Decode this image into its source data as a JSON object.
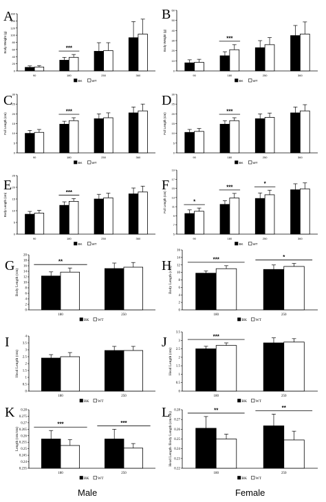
{
  "figure": {
    "column_labels": [
      "Male",
      "Female"
    ]
  },
  "chart_data": [
    {
      "type": "bar",
      "panel": "A",
      "categories": [
        "90",
        "180",
        "250",
        "360"
      ],
      "ylabel": "Body Weight (g)",
      "ylim": [
        0,
        160
      ],
      "yticks": [
        "0",
        "20",
        "40",
        "60",
        "80",
        "100",
        "120",
        "140",
        "160"
      ],
      "series": [
        {
          "name": "BK",
          "values": [
            10,
            30,
            55,
            93
          ],
          "errors": [
            4,
            8,
            24,
            45
          ]
        },
        {
          "name": "WT",
          "values": [
            11,
            38,
            57,
            103
          ],
          "errors": [
            4,
            8,
            22,
            42
          ]
        }
      ],
      "legend": "bottom",
      "significance": [
        {
          "category": "180",
          "label": "***"
        }
      ]
    },
    {
      "type": "bar",
      "panel": "B",
      "categories": [
        "90",
        "180",
        "250",
        "360"
      ],
      "ylabel": "Body Weight (g)",
      "ylim": [
        0,
        60
      ],
      "yticks": [
        "0",
        "10",
        "20",
        "30",
        "40",
        "50",
        "60"
      ],
      "series": [
        {
          "name": "BK",
          "values": [
            8,
            15,
            23,
            35
          ],
          "errors": [
            3,
            4,
            7,
            10
          ]
        },
        {
          "name": "WT",
          "values": [
            8.5,
            21,
            26,
            36.5
          ],
          "errors": [
            3,
            5,
            7,
            12
          ]
        }
      ],
      "legend": "bottom",
      "significance": [
        {
          "category": "180",
          "label": "***"
        }
      ]
    },
    {
      "type": "bar",
      "panel": "C",
      "categories": [
        "90",
        "180",
        "250",
        "360"
      ],
      "ylabel": "Full Length (cm)",
      "ylim": [
        0,
        30
      ],
      "yticks": [
        "0",
        "5",
        "10",
        "15",
        "20",
        "25",
        "30"
      ],
      "series": [
        {
          "name": "BK",
          "values": [
            10,
            14.7,
            17.5,
            20.5
          ],
          "errors": [
            1.5,
            1.5,
            2.5,
            3
          ]
        },
        {
          "name": "WT",
          "values": [
            10.5,
            16.5,
            18,
            21.5
          ],
          "errors": [
            1.5,
            1.5,
            2.5,
            3.5
          ]
        }
      ],
      "legend": "bottom",
      "significance": [
        {
          "category": "180",
          "label": "***"
        }
      ]
    },
    {
      "type": "bar",
      "panel": "D",
      "categories": [
        "90",
        "180",
        "250",
        "360"
      ],
      "ylabel": "Full Length (cm)",
      "ylim": [
        0,
        30
      ],
      "yticks": [
        "0",
        "5",
        "10",
        "15",
        "20",
        "25",
        "30"
      ],
      "series": [
        {
          "name": "BK",
          "values": [
            10.5,
            14.7,
            17.5,
            20.5
          ],
          "errors": [
            1.5,
            1.8,
            2.5,
            3
          ]
        },
        {
          "name": "WT",
          "values": [
            11,
            16.5,
            18.2,
            21.5
          ],
          "errors": [
            1.5,
            1.5,
            2.2,
            3.2
          ]
        }
      ],
      "legend": "bottom",
      "significance": [
        {
          "category": "180",
          "label": "***"
        }
      ]
    },
    {
      "type": "bar",
      "panel": "E",
      "categories": [
        "90",
        "180",
        "250",
        "360"
      ],
      "ylabel": "Body Length (cm)",
      "ylim": [
        0,
        25
      ],
      "yticks": [
        "0",
        "5",
        "10",
        "15",
        "20",
        "25"
      ],
      "series": [
        {
          "name": "BK",
          "values": [
            8.5,
            12.3,
            15,
            17.2
          ],
          "errors": [
            1.2,
            1.5,
            2,
            2.5
          ]
        },
        {
          "name": "WT",
          "values": [
            9,
            14,
            15.5,
            18
          ],
          "errors": [
            1.2,
            1.2,
            2,
            2.5
          ]
        }
      ],
      "legend": "bottom",
      "significance": [
        {
          "category": "180",
          "label": "***"
        }
      ]
    },
    {
      "type": "bar",
      "panel": "F",
      "categories": [
        "90",
        "180",
        "250",
        "360"
      ],
      "ylabel": "Full Length (cm)",
      "ylim": [
        5,
        19
      ],
      "yticks": [
        "5",
        "7",
        "9",
        "11",
        "13",
        "15",
        "17",
        "19"
      ],
      "series": [
        {
          "name": "BK",
          "values": [
            9.5,
            11.5,
            12.8,
            14.7
          ],
          "errors": [
            0.8,
            0.8,
            1.2,
            1.3
          ]
        },
        {
          "name": "WT",
          "values": [
            10,
            12.9,
            13.6,
            14.9
          ],
          "errors": [
            0.7,
            1,
            1,
            1.3
          ]
        }
      ],
      "legend": "bottom",
      "significance": [
        {
          "category": "90",
          "label": "*"
        },
        {
          "category": "180",
          "label": "***"
        },
        {
          "category": "250",
          "label": "*"
        }
      ]
    },
    {
      "type": "bar",
      "panel": "G",
      "categories": [
        "180",
        "250"
      ],
      "ylabel": "Body Length (cm)",
      "ylim": [
        0,
        20
      ],
      "yticks": [
        "0",
        "2",
        "4",
        "6",
        "8",
        "10",
        "12",
        "14",
        "16",
        "18",
        "20"
      ],
      "series": [
        {
          "name": "BK",
          "values": [
            12.3,
            15
          ],
          "errors": [
            1.5,
            2
          ]
        },
        {
          "name": "WT",
          "values": [
            13.7,
            15.5
          ],
          "errors": [
            1.5,
            1.7
          ]
        }
      ],
      "legend": "bottom",
      "significance": [
        {
          "category": "180",
          "label": "**"
        }
      ]
    },
    {
      "type": "bar",
      "panel": "H",
      "categories": [
        "180",
        "250"
      ],
      "ylabel": "Body Length (cm)",
      "ylim": [
        0,
        16
      ],
      "yticks": [
        "0",
        "2",
        "4",
        "6",
        "8",
        "10",
        "12",
        "14",
        "16"
      ],
      "series": [
        {
          "name": "BK",
          "values": [
            9.8,
            10.8
          ],
          "errors": [
            0.6,
            1.2
          ]
        },
        {
          "name": "WT",
          "values": [
            11,
            11.6
          ],
          "errors": [
            0.8,
            0.8
          ]
        }
      ],
      "legend": "bottom",
      "significance": [
        {
          "category": "180",
          "label": "***"
        },
        {
          "category": "250",
          "label": "*"
        }
      ]
    },
    {
      "type": "bar",
      "panel": "I",
      "categories": [
        "180",
        "250"
      ],
      "ylabel": "Head Length (cm)",
      "ylim": [
        0,
        4
      ],
      "yticks": [
        "0",
        "0.5",
        "1",
        "1.5",
        "2",
        "2.5",
        "3",
        "3.5",
        "4"
      ],
      "series": [
        {
          "name": "BK",
          "values": [
            2.4,
            2.95
          ],
          "errors": [
            0.25,
            0.3
          ]
        },
        {
          "name": "WT",
          "values": [
            2.5,
            2.95
          ],
          "errors": [
            0.3,
            0.3
          ]
        }
      ],
      "legend": "bottom",
      "significance": []
    },
    {
      "type": "bar",
      "panel": "J",
      "categories": [
        "180",
        "250"
      ],
      "ylabel": "Head Length (cm)",
      "ylim": [
        0,
        3.5
      ],
      "yticks": [
        "0",
        "0.5",
        "1",
        "1.5",
        "2",
        "2.5",
        "3",
        "3.5"
      ],
      "series": [
        {
          "name": "BK",
          "values": [
            2.5,
            2.85
          ],
          "errors": [
            0.15,
            0.3
          ]
        },
        {
          "name": "WT",
          "values": [
            2.7,
            2.9
          ],
          "errors": [
            0.15,
            0.2
          ]
        }
      ],
      "legend": "bottom",
      "significance": [
        {
          "category": "180",
          "label": "***"
        }
      ]
    },
    {
      "type": "bar",
      "panel": "K",
      "categories": [
        "180",
        "250"
      ],
      "ylabel": "Length (cm/cm)",
      "ylim": [
        0.235,
        0.28
      ],
      "yticks": [
        "0.235",
        "0.24",
        "0.245",
        "0.25",
        "0.255",
        "0.26",
        "0.265",
        "0.27",
        "0.275",
        "0.28"
      ],
      "series": [
        {
          "name": "BK",
          "values": [
            0.2575,
            0.2575
          ],
          "errors": [
            0.0065,
            0.0075
          ]
        },
        {
          "name": "WT",
          "values": [
            0.2525,
            0.2505
          ],
          "errors": [
            0.0045,
            0.0035
          ]
        }
      ],
      "legend": "bottom",
      "significance": [
        {
          "category": "180",
          "label": "***"
        },
        {
          "category": "250",
          "label": "***"
        }
      ]
    },
    {
      "type": "bar",
      "panel": "L",
      "categories": [
        "180",
        "250"
      ],
      "ylabel": "Head Length /Body Length (cm/cm)",
      "ylim": [
        0.22,
        0.28
      ],
      "yticks": [
        "0.22",
        "0.23",
        "0.24",
        "0.25",
        "0.26",
        "0.27",
        "0.28"
      ],
      "series": [
        {
          "name": "BK",
          "values": [
            0.261,
            0.2635
          ],
          "errors": [
            0.012,
            0.012
          ]
        },
        {
          "name": "WT",
          "values": [
            0.25,
            0.249
          ],
          "errors": [
            0.005,
            0.009
          ]
        }
      ],
      "legend": "bottom",
      "significance": [
        {
          "category": "180",
          "label": "**"
        },
        {
          "category": "250",
          "label": "**"
        }
      ]
    }
  ]
}
